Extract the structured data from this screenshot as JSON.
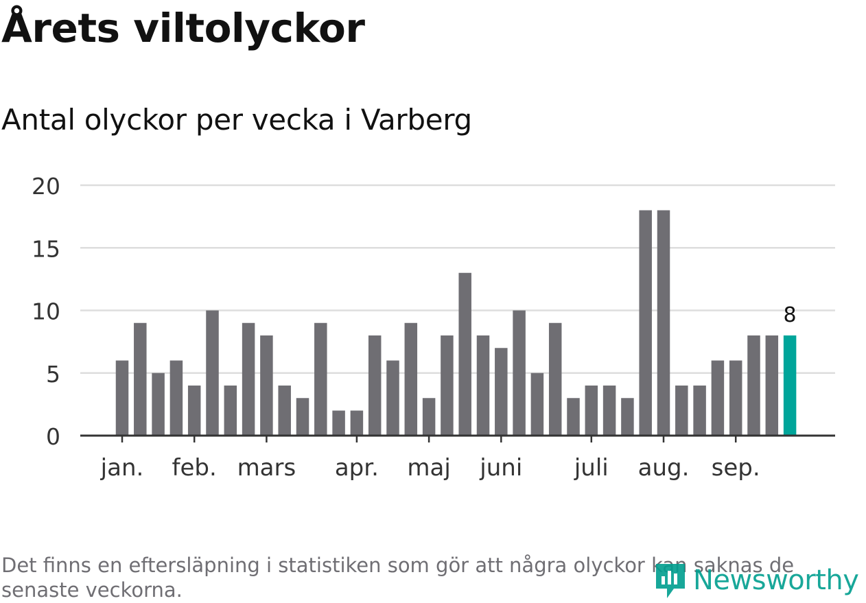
{
  "title": "Årets viltolyckor",
  "subtitle": "Antal olyckor per vecka i Varberg",
  "note": "Det finns en eftersläpning i statistiken som gör att några olyckor kan saknas de senaste veckorna.",
  "brand": {
    "name": "Newsworthy",
    "color": "#009e8f"
  },
  "chart_data": {
    "type": "bar",
    "title": "Årets viltolyckor",
    "subtitle": "Antal olyckor per vecka i Varberg",
    "xlabel": "",
    "ylabel": "",
    "ylim": [
      0,
      20
    ],
    "yticks": [
      0,
      5,
      10,
      15,
      20
    ],
    "grid": true,
    "x_axis_labels": [
      "jan.",
      "feb.",
      "mars",
      "apr.",
      "maj",
      "juni",
      "juli",
      "aug.",
      "sep."
    ],
    "month_start_week": [
      1,
      5,
      9,
      14,
      18,
      22,
      27,
      31,
      35
    ],
    "weeks": [
      1,
      2,
      3,
      4,
      5,
      6,
      7,
      8,
      9,
      10,
      11,
      12,
      13,
      14,
      15,
      16,
      17,
      18,
      19,
      20,
      21,
      22,
      23,
      24,
      25,
      26,
      27,
      28,
      29,
      30,
      31,
      32,
      33,
      34,
      35,
      36,
      37,
      38
    ],
    "values": [
      6,
      9,
      5,
      6,
      4,
      10,
      4,
      9,
      8,
      4,
      3,
      9,
      2,
      2,
      8,
      6,
      9,
      3,
      8,
      13,
      8,
      7,
      10,
      5,
      9,
      3,
      4,
      4,
      3,
      18,
      18,
      4,
      4,
      6,
      6,
      8,
      8,
      8
    ],
    "bar_color": "#6f6e73",
    "highlight_color": "#00a59a",
    "highlight_index": 37,
    "data_labels": [
      {
        "index": 37,
        "text": "8"
      }
    ]
  }
}
